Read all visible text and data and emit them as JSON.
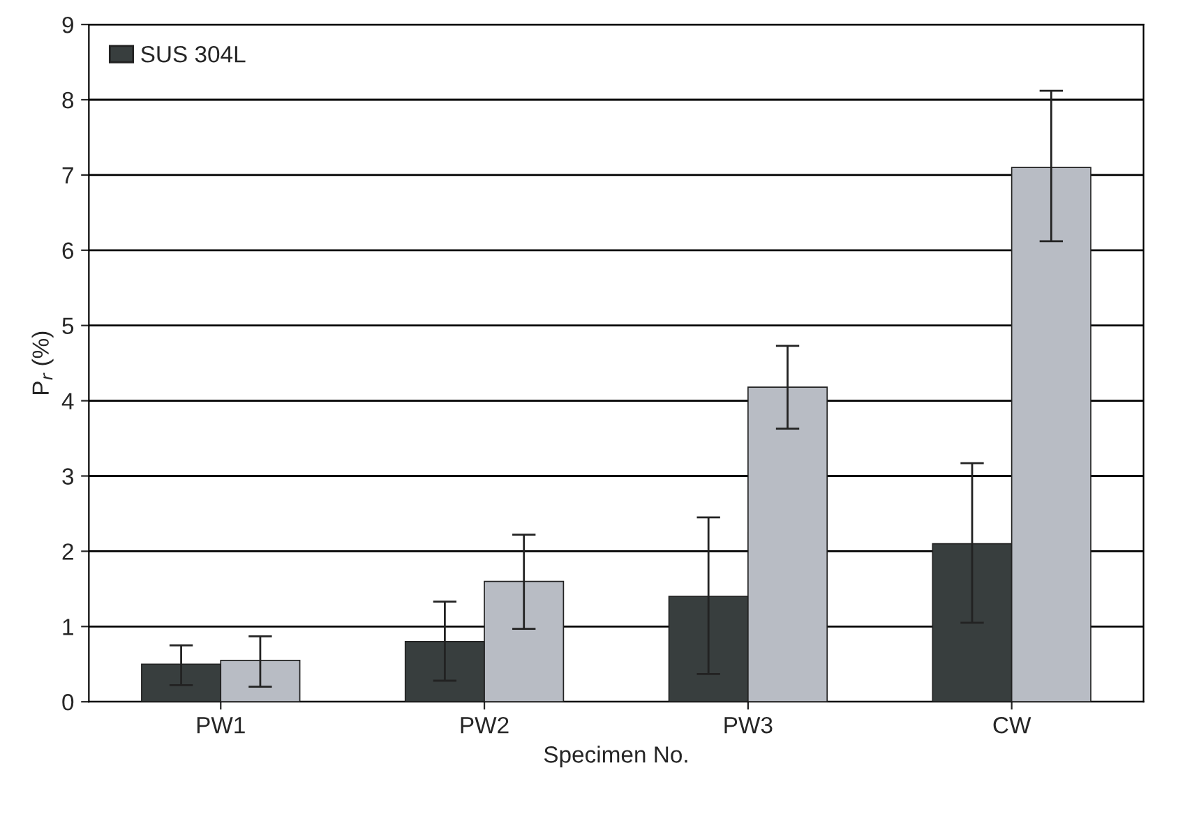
{
  "chart_data": {
    "type": "bar",
    "xlabel": "Specimen No.",
    "ylabel": "P$_{r}$ (%)",
    "categories": [
      "PW1",
      "PW2",
      "PW3",
      "CW"
    ],
    "series": [
      {
        "name": "SUS 304L",
        "color": "#383e3e",
        "values": [
          0.5,
          0.8,
          1.4,
          2.1
        ],
        "errors": [
          [
            0.22,
            0.75
          ],
          [
            0.28,
            1.33
          ],
          [
            0.37,
            2.45
          ],
          [
            1.05,
            3.17
          ]
        ]
      },
      {
        "color": "#b8bcc4",
        "values": [
          0.55,
          1.6,
          4.18,
          7.1
        ],
        "errors": [
          [
            0.2,
            0.87
          ],
          [
            0.97,
            2.22
          ],
          [
            3.63,
            4.73
          ],
          [
            6.12,
            8.12
          ]
        ]
      }
    ],
    "ylim": [
      0,
      9
    ],
    "yticks": [
      0,
      1,
      2,
      3,
      4,
      5,
      6,
      7,
      8,
      9
    ],
    "grid": "y",
    "legend": "top left"
  }
}
